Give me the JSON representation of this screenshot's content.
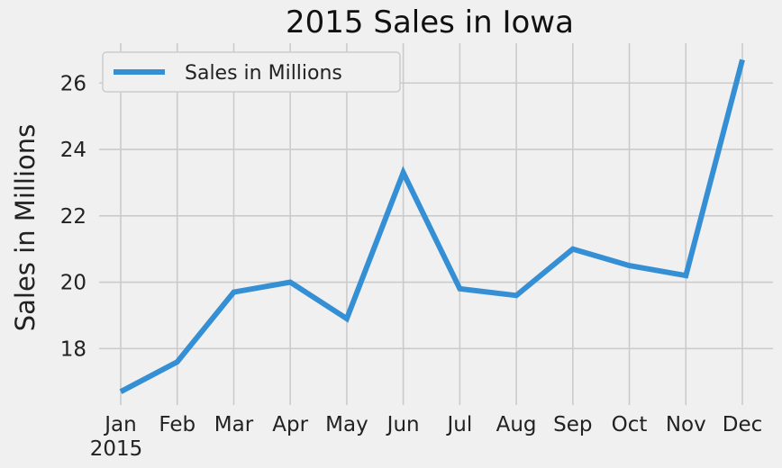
{
  "chart_data": {
    "type": "line",
    "title": "2015 Sales in Iowa",
    "xlabel": "",
    "ylabel": "Sales in Millions",
    "categories": [
      "Jan",
      "Feb",
      "Mar",
      "Apr",
      "May",
      "Jun",
      "Jul",
      "Aug",
      "Sep",
      "Oct",
      "Nov",
      "Dec"
    ],
    "x_sublabel": "2015",
    "series": [
      {
        "name": "Sales in Millions",
        "values": [
          16.7,
          17.6,
          19.7,
          20.0,
          18.9,
          23.3,
          19.8,
          19.6,
          21.0,
          20.5,
          20.2,
          26.7
        ],
        "color": "#348fd4"
      }
    ],
    "yticks": [
      18,
      20,
      22,
      24,
      26
    ],
    "ylim": [
      16.3,
      27.2
    ],
    "grid": true,
    "legend_position": "top-left"
  }
}
